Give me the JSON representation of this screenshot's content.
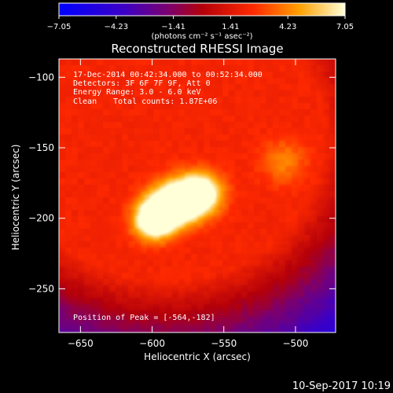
{
  "chart_data": {
    "type": "heatmap",
    "title": "Reconstructed RHESSI Image",
    "xlabel": "Heliocentric X (arcsec)",
    "ylabel": "Heliocentric Y (arcsec)",
    "xlim": [
      -665,
      -472
    ],
    "ylim": [
      -281,
      -87
    ],
    "xticks": [
      -650,
      -600,
      -550,
      -500
    ],
    "yticks": [
      -100,
      -150,
      -200,
      -250
    ],
    "x_tick_labels": [
      "−650",
      "−600",
      "−550",
      "−500"
    ],
    "y_tick_labels": [
      "−100",
      "−150",
      "−200",
      "−250"
    ],
    "colorbar": {
      "colormap": "hot",
      "range": [
        -7.05,
        7.05
      ],
      "ticks": [
        -7.05,
        -4.23,
        -1.41,
        1.41,
        4.23,
        7.05
      ],
      "tick_labels": [
        "−7.05",
        "−4.23",
        "−1.41",
        "1.41",
        "4.23",
        "7.05"
      ],
      "unit_label": "(photons cm⁻² s⁻¹ asec⁻²)"
    },
    "sources": [
      {
        "x": -600,
        "y": -203,
        "sigma": 9,
        "peak": 7.05
      },
      {
        "x": -595,
        "y": -196,
        "sigma": 10,
        "peak": 6.8
      },
      {
        "x": -585,
        "y": -190,
        "sigma": 11,
        "peak": 6.5
      },
      {
        "x": -575,
        "y": -186,
        "sigma": 11,
        "peak": 6.7
      },
      {
        "x": -564,
        "y": -182,
        "sigma": 10,
        "peak": 6.9
      },
      {
        "x": -508,
        "y": -160,
        "sigma": 11,
        "peak": 4.0
      }
    ],
    "peak_position": [
      -564,
      -182
    ]
  },
  "annotations": {
    "time_range": "17-Dec-2014 00:42:34.000 to 00:52:34.000",
    "detectors": "Detectors: 3F 6F 7F 9F, Att 0",
    "energy_range": "Energy Range: 3.0 - 6.0 keV",
    "clean": "Clean",
    "total_counts": "Total counts: 1.87E+06",
    "peak_position_label": "Position of Peak = [-564,-182]"
  },
  "footer": {
    "timestamp": "10-Sep-2017 10:19"
  }
}
